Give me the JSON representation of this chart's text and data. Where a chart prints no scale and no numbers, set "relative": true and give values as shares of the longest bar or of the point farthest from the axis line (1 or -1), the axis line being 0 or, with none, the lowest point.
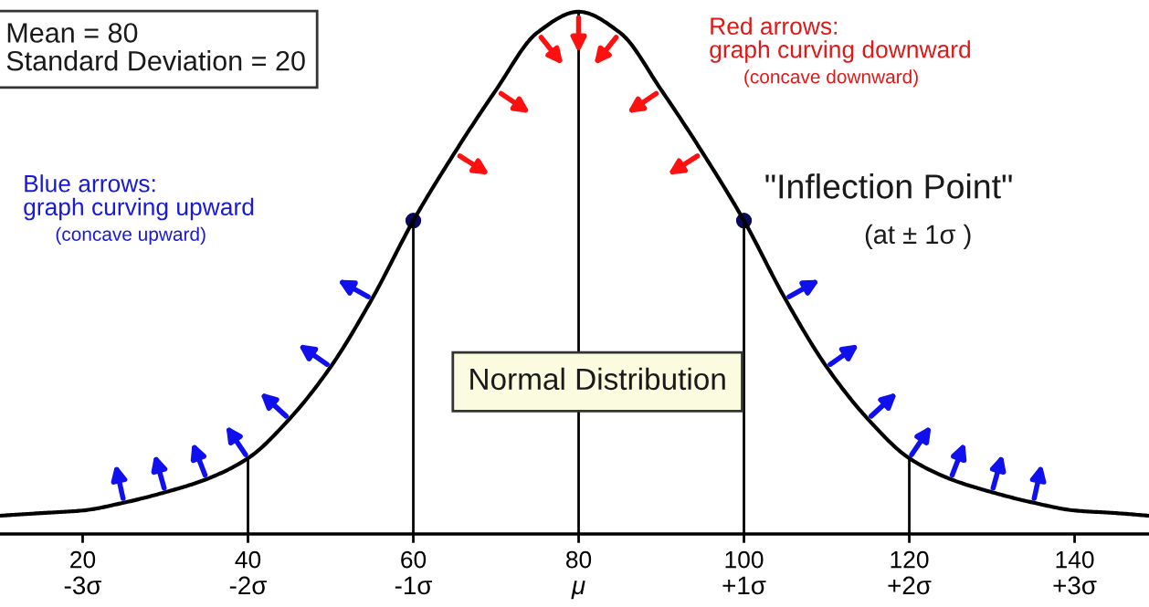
{
  "chart_data": {
    "type": "line",
    "relative": true,
    "x": [
      10,
      15,
      20,
      25,
      30,
      35,
      40,
      45,
      50,
      55,
      60,
      65,
      70,
      75,
      80,
      85,
      90,
      95,
      100,
      105,
      110,
      115,
      120,
      125,
      130,
      135,
      140,
      145,
      149
    ],
    "series": [
      {
        "color": "#000000",
        "values": [
          0.035,
          0.04,
          0.045,
          0.06,
          0.08,
          0.105,
          0.145,
          0.22,
          0.32,
          0.45,
          0.6,
          0.73,
          0.85,
          0.96,
          1.0,
          0.96,
          0.85,
          0.73,
          0.6,
          0.45,
          0.32,
          0.22,
          0.145,
          0.105,
          0.08,
          0.06,
          0.045,
          0.04,
          0.035
        ]
      },
      {
        "type": "scatter",
        "color": "#0a0a5a",
        "marker": "circle",
        "x": [
          60,
          100
        ],
        "values": [
          0.6,
          0.6
        ]
      }
    ],
    "xlim": [
      10,
      149
    ],
    "xticks": [
      20,
      40,
      60,
      80,
      100,
      120,
      140
    ],
    "x2lim": [
      -3.5,
      3.45
    ],
    "x2ticks": [
      {
        "value": -3,
        "label": "-3σ"
      },
      {
        "value": -2,
        "label": "-2σ"
      },
      {
        "value": -1,
        "label": "-1σ"
      },
      {
        "value": 0,
        "label": "μ"
      },
      {
        "value": 1,
        "label": "+1σ"
      },
      {
        "value": 2,
        "label": "+2σ"
      },
      {
        "value": 3,
        "label": "+3σ"
      }
    ],
    "ref_lines": [
      {
        "axis": "x",
        "value": 40
      },
      {
        "axis": "x",
        "value": 60
      },
      {
        "axis": "x",
        "value": 80
      },
      {
        "axis": "x",
        "value": 100
      },
      {
        "axis": "x",
        "value": 120
      }
    ],
    "grid": false,
    "legend": false,
    "marker": "none",
    "line_style": "solid",
    "annotations": [
      "Mean = 80\nStandard Deviation = 20",
      "Blue arrows:\ngraph curving upward",
      "(concave upward)",
      "Red arrows:\ngraph curving downward",
      "(concave downward)",
      {
        "text": "\"Inflection Point\"",
        "x": 100,
        "y": 0.6
      },
      "(at ± 1σ )",
      "Normal Distribution"
    ]
  }
}
